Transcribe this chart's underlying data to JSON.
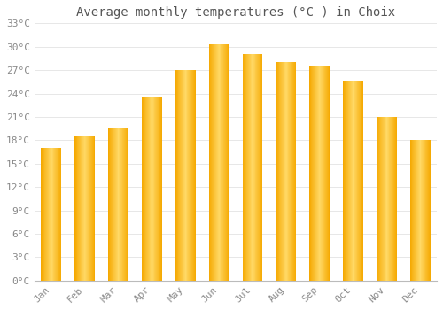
{
  "months": [
    "Jan",
    "Feb",
    "Mar",
    "Apr",
    "May",
    "Jun",
    "Jul",
    "Aug",
    "Sep",
    "Oct",
    "Nov",
    "Dec"
  ],
  "temperatures": [
    17.0,
    18.5,
    19.5,
    23.5,
    27.0,
    30.3,
    29.0,
    28.0,
    27.5,
    25.5,
    21.0,
    18.0
  ],
  "title": "Average monthly temperatures (°C ) in Choix",
  "bar_color_edge": "#F5A800",
  "bar_color_center": "#FFD966",
  "ylim": [
    0,
    33
  ],
  "yticks": [
    0,
    3,
    6,
    9,
    12,
    15,
    18,
    21,
    24,
    27,
    30,
    33
  ],
  "ytick_labels": [
    "0°C",
    "3°C",
    "6°C",
    "9°C",
    "12°C",
    "15°C",
    "18°C",
    "21°C",
    "24°C",
    "27°C",
    "30°C",
    "33°C"
  ],
  "background_color": "#FFFFFF",
  "grid_color": "#DDDDDD",
  "title_fontsize": 10,
  "tick_fontsize": 8,
  "font_color": "#888888"
}
